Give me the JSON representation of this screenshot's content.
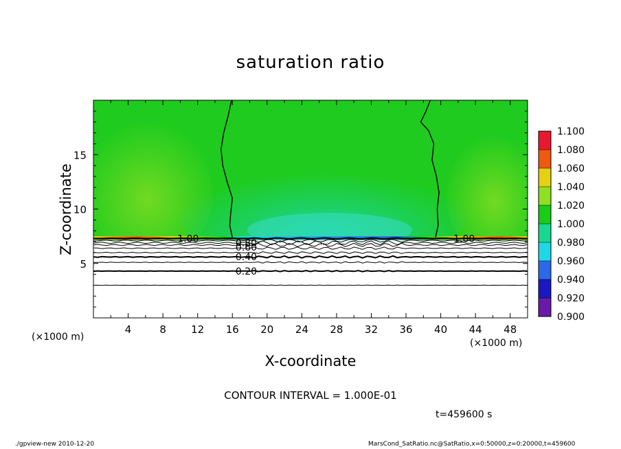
{
  "chart_data": {
    "type": "heatmap",
    "title": "saturation ratio",
    "xlabel": "X-coordinate",
    "ylabel": "Z-coordinate",
    "x_unit": "(×1000 m)",
    "xlim": [
      0,
      50
    ],
    "ylim": [
      0,
      20
    ],
    "x_ticks": [
      "4",
      "8",
      "12",
      "16",
      "20",
      "24",
      "28",
      "32",
      "36",
      "40",
      "44",
      "48"
    ],
    "y_ticks": [
      "5",
      "10",
      "15"
    ],
    "colorbar": {
      "levels": [
        "0.900",
        "0.920",
        "0.940",
        "0.960",
        "0.980",
        "1.000",
        "1.020",
        "1.040",
        "1.060",
        "1.080",
        "1.100"
      ],
      "colors": [
        "#6a1aa8",
        "#1a18c0",
        "#2a6ae8",
        "#1ed8e8",
        "#18d890",
        "#18cc18",
        "#8ee020",
        "#e6d012",
        "#ee5a10",
        "#e81830",
        "#f49898"
      ]
    },
    "contour_labels": [
      {
        "text": "1.00",
        "x": 10.9,
        "z": 7.3
      },
      {
        "text": "1.00",
        "x": 42.7,
        "z": 7.3
      },
      {
        "text": "0.80",
        "x": 17.6,
        "z": 6.9
      },
      {
        "text": "0.60",
        "x": 17.6,
        "z": 6.5
      },
      {
        "text": "0.40",
        "x": 17.6,
        "z": 5.6
      },
      {
        "text": "0.20",
        "x": 17.6,
        "z": 4.3
      }
    ],
    "contour_interval": "CONTOUR INTERVAL = 1.000E-01",
    "time": "t=459600 s"
  },
  "footer": {
    "left": "./gpview-new   2010-12-20",
    "right": "MarsCond_SatRatio.nc@SatRatio,x=0:50000,z=0:20000,t=459600"
  },
  "colors": {
    "green_field": "#1ecb1e",
    "background": "#ffffff"
  }
}
